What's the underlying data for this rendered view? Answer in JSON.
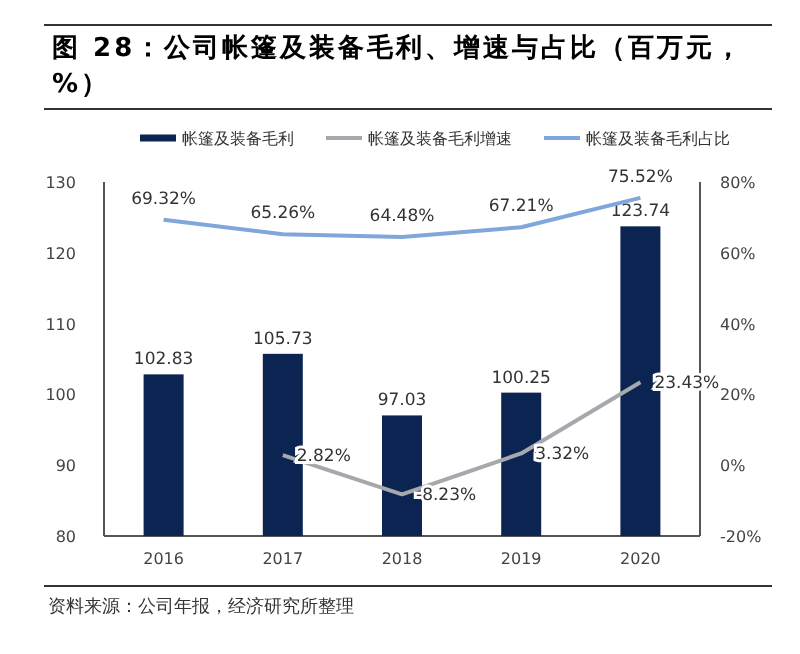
{
  "chart_data": {
    "type": "bar",
    "title": "图 28：公司帐篷及装备毛利、增速与占比（百万元，%）",
    "categories": [
      "2016",
      "2017",
      "2018",
      "2019",
      "2020"
    ],
    "series": [
      {
        "name": "帐篷及装备毛利",
        "color": "#0c2451",
        "values": [
          102.83,
          105.73,
          97.03,
          100.25,
          123.74
        ],
        "value_labels": [
          "102.83",
          "105.73",
          "97.03",
          "100.25",
          "123.74"
        ]
      },
      {
        "name": "帐篷及装备毛利增速",
        "type": "line",
        "axis": "y2",
        "color": "#a5a8ac",
        "values": [
          null,
          2.82,
          -8.23,
          3.32,
          23.43
        ],
        "value_labels": [
          null,
          "2.82%",
          "-8.23%",
          "3.32%",
          "23.43%"
        ]
      },
      {
        "name": "帐篷及装备毛利占比",
        "type": "line",
        "axis": "y2",
        "color": "#7fa7d9",
        "values": [
          69.32,
          65.26,
          64.48,
          67.21,
          75.52
        ],
        "value_labels": [
          "69.32%",
          "65.26%",
          "64.48%",
          "67.21%",
          "75.52%"
        ]
      }
    ],
    "ylim": [
      80,
      130
    ],
    "yticks": [
      80,
      90,
      100,
      110,
      120,
      130
    ],
    "y2lim": [
      -20,
      80
    ],
    "y2ticks": [
      {
        "value": -20,
        "label": "-20%"
      },
      {
        "value": 0,
        "label": "0%"
      },
      {
        "value": 20,
        "label": "20%"
      },
      {
        "value": 40,
        "label": "40%"
      },
      {
        "value": 60,
        "label": "60%"
      },
      {
        "value": 80,
        "label": "80%"
      }
    ],
    "legend": "top",
    "grid": false,
    "annotations": [
      "资料来源：公司年报，经济研究所整理"
    ]
  }
}
